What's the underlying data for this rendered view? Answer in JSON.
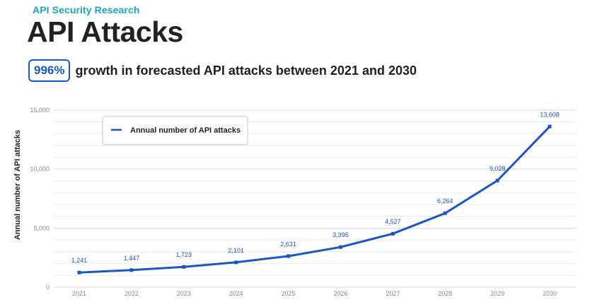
{
  "header": {
    "kicker": "API Security Research",
    "title": "API Attacks",
    "highlight_value": "996%",
    "highlight_text": "growth in forecasted API attacks between 2021 and 2030"
  },
  "colors": {
    "series": "#1a56c4",
    "kicker": "#1ea6b8",
    "grid": "#e6e6e6"
  },
  "chart_data": {
    "type": "line",
    "title": "API Attacks",
    "xlabel": "",
    "ylabel": "Annual number of API attacks",
    "x": [
      "2021",
      "2022",
      "2023",
      "2024",
      "2025",
      "2026",
      "2027",
      "2028",
      "2029",
      "2030"
    ],
    "series": [
      {
        "name": "Annual number of API attacks",
        "values": [
          1241,
          1447,
          1723,
          2101,
          2631,
          3395,
          4527,
          6264,
          9028,
          13608
        ]
      }
    ],
    "data_labels": [
      "1,241",
      "1,447",
      "1,723",
      "2,101",
      "2,631",
      "3,395",
      "4,527",
      "6,264",
      "9,028",
      "13,608"
    ],
    "y_ticks": [
      0,
      5000,
      10000,
      15000
    ],
    "y_tick_labels": [
      "0",
      "5,000",
      "10,000",
      "15,000"
    ],
    "ylim": [
      0,
      15000
    ],
    "grid": true,
    "legend_position": "top-left"
  }
}
